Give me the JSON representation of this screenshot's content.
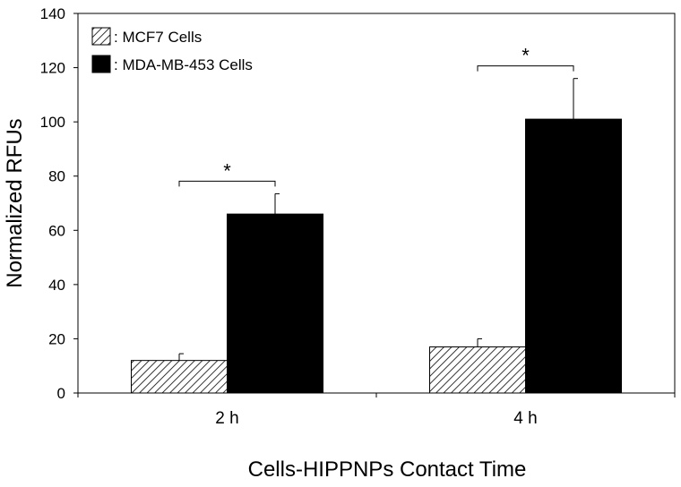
{
  "chart_data": {
    "type": "bar",
    "title": "",
    "xlabel": "Cells-HIPPNPs Contact Time",
    "ylabel": "Normalized RFUs",
    "categories": [
      "2 h",
      "4 h"
    ],
    "ylim": [
      0,
      140
    ],
    "yticks": [
      0,
      20,
      40,
      60,
      80,
      100,
      120,
      140
    ],
    "grid": false,
    "legend_position": "top-left",
    "series": [
      {
        "name": ": MCF7 Cells",
        "values": [
          12,
          17
        ],
        "error": [
          2.5,
          3
        ],
        "fill": "hatched",
        "color": "#000000"
      },
      {
        "name": ": MDA-MB-453 Cells",
        "values": [
          66,
          101
        ],
        "error": [
          7.5,
          15
        ],
        "fill": "solid",
        "color": "#000000"
      }
    ],
    "annotations": [
      {
        "text": "*",
        "category": "2 h"
      },
      {
        "text": "*",
        "category": "4 h"
      }
    ]
  }
}
